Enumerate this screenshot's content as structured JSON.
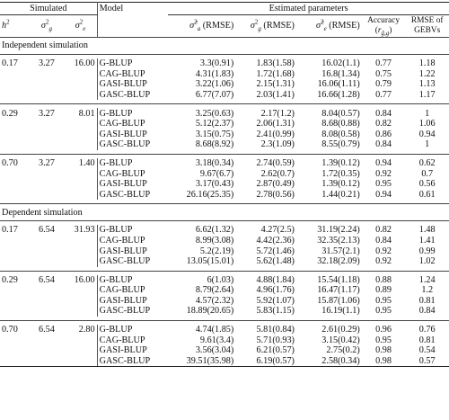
{
  "header": {
    "simulated": "Simulated",
    "model": "Model",
    "estimated": "Estimated parameters",
    "h2": "h",
    "h2_sup": "2",
    "sg": "σ",
    "sg_sub": "g",
    "sg_sup": "2",
    "se": "σ",
    "se_sub": "e",
    "se_sup": "2",
    "col_a": "σ̂",
    "col_a_sub": "a",
    "col_a_sup": "2",
    "col_a_rmse": "(RMSE)",
    "col_g": "σ",
    "col_g_sub": "g",
    "col_g_sup": "2",
    "col_g_rmse": "(RMSE)",
    "col_e": "σ̂",
    "col_e_sub": "e",
    "col_e_sup": "2",
    "col_e_rmse": "(RMSE)",
    "accuracy": "Accuracy",
    "accuracy_sym": "(r",
    "accuracy_sub": "ĝ,g",
    "accuracy_close": ")",
    "rmse_of": "RMSE of",
    "gebvs": "GEBVs"
  },
  "sections": [
    {
      "title": "Independent simulation",
      "groups": [
        {
          "h2": "0.17",
          "sg": "3.27",
          "se": "16.00",
          "rows": [
            {
              "model": "G-BLUP",
              "a": "3.3(0.91)",
              "g": "1.83(1.58)",
              "e": "16.02(1.1)",
              "acc": "0.77",
              "rmse": "1.18"
            },
            {
              "model": "CAG-BLUP",
              "a": "4.31(1.83)",
              "g": "1.72(1.68)",
              "e": "16.8(1.34)",
              "acc": "0.75",
              "rmse": "1.22"
            },
            {
              "model": "GASI-BLUP",
              "a": "3.22(1.06)",
              "g": "2.15(1.31)",
              "e": "16.06(1.11)",
              "acc": "0.79",
              "rmse": "1.13"
            },
            {
              "model": "GASC-BLUP",
              "a": "6.77(7.07)",
              "g": "2.03(1.41)",
              "e": "16.66(1.28)",
              "acc": "0.77",
              "rmse": "1.17"
            }
          ]
        },
        {
          "h2": "0.29",
          "sg": "3.27",
          "se": "8.01",
          "rows": [
            {
              "model": "G-BLUP",
              "a": "3.25(0.63)",
              "g": "2.17(1.2)",
              "e": "8.04(0.57)",
              "acc": "0.84",
              "rmse": "1"
            },
            {
              "model": "CAG-BLUP",
              "a": "5.12(2.37)",
              "g": "2.06(1.31)",
              "e": "8.68(0.88)",
              "acc": "0.82",
              "rmse": "1.06"
            },
            {
              "model": "GASI-BLUP",
              "a": "3.15(0.75)",
              "g": "2.41(0.99)",
              "e": "8.08(0.58)",
              "acc": "0.86",
              "rmse": "0.94"
            },
            {
              "model": "GASC-BLUP",
              "a": "8.68(8.92)",
              "g": "2.3(1.09)",
              "e": "8.55(0.79)",
              "acc": "0.84",
              "rmse": "1"
            }
          ]
        },
        {
          "h2": "0.70",
          "sg": "3.27",
          "se": "1.40",
          "rows": [
            {
              "model": "G-BLUP",
              "a": "3.18(0.34)",
              "g": "2.74(0.59)",
              "e": "1.39(0.12)",
              "acc": "0.94",
              "rmse": "0.62"
            },
            {
              "model": "CAG-BLUP",
              "a": "9.67(6.7)",
              "g": "2.62(0.7)",
              "e": "1.72(0.35)",
              "acc": "0.92",
              "rmse": "0.7"
            },
            {
              "model": "GASI-BLUP",
              "a": "3.17(0.43)",
              "g": "2.87(0.49)",
              "e": "1.39(0.12)",
              "acc": "0.95",
              "rmse": "0.56"
            },
            {
              "model": "GASC-BLUP",
              "a": "26.16(25.35)",
              "g": "2.78(0.56)",
              "e": "1.44(0.21)",
              "acc": "0.94",
              "rmse": "0.61"
            }
          ]
        }
      ]
    },
    {
      "title": "Dependent simulation",
      "groups": [
        {
          "h2": "0.17",
          "sg": "6.54",
          "se": "31.93",
          "rows": [
            {
              "model": "G-BLUP",
              "a": "6.62(1.32)",
              "g": "4.27(2.5)",
              "e": "31.19(2.24)",
              "acc": "0.82",
              "rmse": "1.48"
            },
            {
              "model": "CAG-BLUP",
              "a": "8.99(3.08)",
              "g": "4.42(2.36)",
              "e": "32.35(2.13)",
              "acc": "0.84",
              "rmse": "1.41"
            },
            {
              "model": "GASI-BLUP",
              "a": "5.2(2.19)",
              "g": "5.72(1.46)",
              "e": "31.57(2.1)",
              "acc": "0.92",
              "rmse": "0.99"
            },
            {
              "model": "GASC-BLUP",
              "a": "13.05(15.01)",
              "g": "5.62(1.48)",
              "e": "32.18(2.09)",
              "acc": "0.92",
              "rmse": "1.02"
            }
          ]
        },
        {
          "h2": "0.29",
          "sg": "6.54",
          "se": "16.00",
          "rows": [
            {
              "model": "G-BLUP",
              "a": "6(1.03)",
              "g": "4.88(1.84)",
              "e": "15.54(1.18)",
              "acc": "0.88",
              "rmse": "1.24"
            },
            {
              "model": "CAG-BLUP",
              "a": "8.79(2.64)",
              "g": "4.96(1.76)",
              "e": "16.47(1.17)",
              "acc": "0.89",
              "rmse": "1.2"
            },
            {
              "model": "GASI-BLUP",
              "a": "4.57(2.32)",
              "g": "5.92(1.07)",
              "e": "15.87(1.06)",
              "acc": "0.95",
              "rmse": "0.81"
            },
            {
              "model": "GASC-BLUP",
              "a": "18.89(20.65)",
              "g": "5.83(1.15)",
              "e": "16.19(1.1)",
              "acc": "0.95",
              "rmse": "0.84"
            }
          ]
        },
        {
          "h2": "0.70",
          "sg": "6.54",
          "se": "2.80",
          "rows": [
            {
              "model": "G-BLUP",
              "a": "4.74(1.85)",
              "g": "5.81(0.84)",
              "e": "2.61(0.29)",
              "acc": "0.96",
              "rmse": "0.76"
            },
            {
              "model": "CAG-BLUP",
              "a": "9.61(3.4)",
              "g": "5.71(0.93)",
              "e": "3.15(0.42)",
              "acc": "0.95",
              "rmse": "0.81"
            },
            {
              "model": "GASI-BLUP",
              "a": "3.56(3.04)",
              "g": "6.21(0.57)",
              "e": "2.75(0.2)",
              "acc": "0.98",
              "rmse": "0.54"
            },
            {
              "model": "GASC-BLUP",
              "a": "39.51(35.98)",
              "g": "6.19(0.57)",
              "e": "2.58(0.34)",
              "acc": "0.98",
              "rmse": "0.57"
            }
          ]
        }
      ]
    }
  ]
}
